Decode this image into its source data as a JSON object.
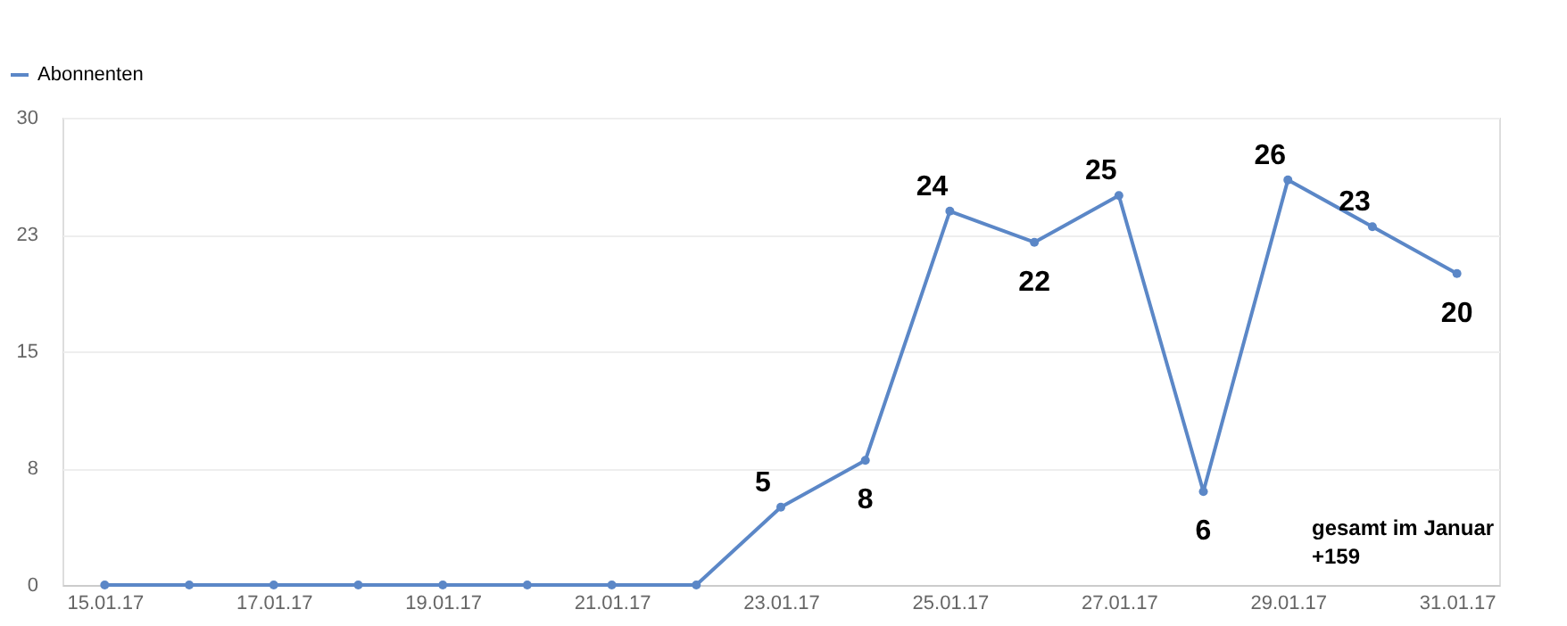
{
  "chart_data": {
    "type": "line",
    "categories": [
      "15.01.17",
      null,
      "17.01.17",
      null,
      "19.01.17",
      null,
      "21.01.17",
      null,
      "23.01.17",
      null,
      "25.01.17",
      null,
      "27.01.17",
      null,
      "29.01.17",
      null,
      "31.01.17"
    ],
    "series": [
      {
        "name": "Abonnenten",
        "color": "#5b87c7",
        "values": [
          0,
          0,
          0,
          0,
          0,
          0,
          0,
          0,
          5,
          8,
          24,
          22,
          25,
          6,
          26,
          23,
          20
        ],
        "value_labels": [
          null,
          null,
          null,
          null,
          null,
          null,
          null,
          null,
          "5",
          "8",
          "24",
          "22",
          "25",
          "6",
          "26",
          "23",
          "20"
        ]
      }
    ],
    "ylim": [
      0,
      30
    ],
    "yticks": [
      0,
      {
        "value": 7.5,
        "label": "8"
      },
      15,
      {
        "value": 22.5,
        "label": "23"
      },
      30
    ],
    "annotations": [
      "gesamt im Januar\n+159"
    ],
    "grid": "y",
    "legend": "top left",
    "marker": "circle",
    "line_style": "solid"
  }
}
